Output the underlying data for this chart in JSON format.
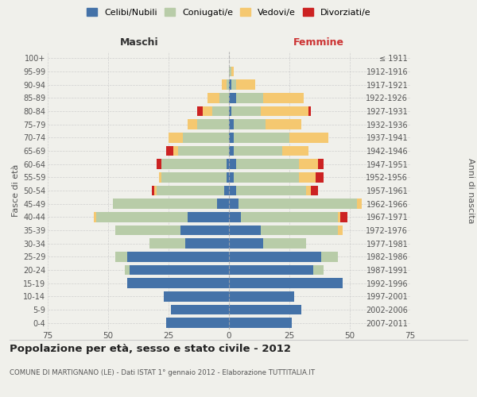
{
  "age_groups": [
    "0-4",
    "5-9",
    "10-14",
    "15-19",
    "20-24",
    "25-29",
    "30-34",
    "35-39",
    "40-44",
    "45-49",
    "50-54",
    "55-59",
    "60-64",
    "65-69",
    "70-74",
    "75-79",
    "80-84",
    "85-89",
    "90-94",
    "95-99",
    "100+"
  ],
  "birth_years": [
    "2007-2011",
    "2002-2006",
    "1997-2001",
    "1992-1996",
    "1987-1991",
    "1982-1986",
    "1977-1981",
    "1972-1976",
    "1967-1971",
    "1962-1966",
    "1957-1961",
    "1952-1956",
    "1947-1951",
    "1942-1946",
    "1937-1941",
    "1932-1936",
    "1927-1931",
    "1922-1926",
    "1917-1921",
    "1912-1916",
    "≤ 1911"
  ],
  "maschi": {
    "celibi": [
      26,
      24,
      27,
      42,
      41,
      42,
      18,
      20,
      17,
      5,
      2,
      1,
      1,
      0,
      0,
      0,
      0,
      0,
      0,
      0,
      0
    ],
    "coniugati": [
      0,
      0,
      0,
      0,
      2,
      5,
      15,
      27,
      38,
      43,
      28,
      27,
      27,
      21,
      19,
      13,
      7,
      4,
      1,
      0,
      0
    ],
    "vedovi": [
      0,
      0,
      0,
      0,
      0,
      0,
      0,
      0,
      1,
      0,
      1,
      1,
      0,
      2,
      6,
      4,
      4,
      5,
      2,
      0,
      0
    ],
    "divorziati": [
      0,
      0,
      0,
      0,
      0,
      0,
      0,
      0,
      0,
      0,
      1,
      0,
      2,
      3,
      0,
      0,
      2,
      0,
      0,
      0,
      0
    ]
  },
  "femmine": {
    "nubili": [
      26,
      30,
      27,
      47,
      35,
      38,
      14,
      13,
      5,
      4,
      3,
      2,
      3,
      2,
      2,
      2,
      1,
      3,
      1,
      0,
      0
    ],
    "coniugate": [
      0,
      0,
      0,
      0,
      4,
      7,
      18,
      32,
      40,
      49,
      29,
      27,
      26,
      20,
      23,
      13,
      12,
      11,
      2,
      1,
      0
    ],
    "vedove": [
      0,
      0,
      0,
      0,
      0,
      0,
      0,
      2,
      1,
      2,
      2,
      7,
      8,
      11,
      16,
      15,
      20,
      17,
      8,
      1,
      0
    ],
    "divorziate": [
      0,
      0,
      0,
      0,
      0,
      0,
      0,
      0,
      3,
      0,
      3,
      3,
      2,
      0,
      0,
      0,
      1,
      0,
      0,
      0,
      0
    ]
  },
  "colors": {
    "celibi": "#4472a8",
    "coniugati": "#b8cca8",
    "vedovi": "#f5c870",
    "divorziati": "#cc2222"
  },
  "xlim": 75,
  "title": "Popolazione per età, sesso e stato civile - 2012",
  "subtitle": "COMUNE DI MARTIGNANO (LE) - Dati ISTAT 1° gennaio 2012 - Elaborazione TUTTITALIA.IT",
  "ylabel_left": "Fasce di età",
  "ylabel_right": "Anni di nascita",
  "xlabel_maschi": "Maschi",
  "xlabel_femmine": "Femmine",
  "bg_color": "#f0f0eb",
  "grid_color": "#cccccc"
}
